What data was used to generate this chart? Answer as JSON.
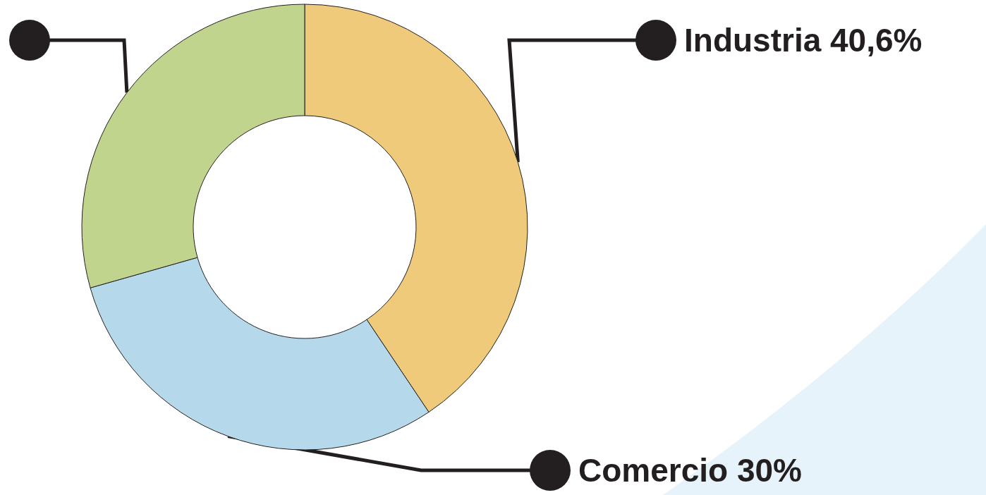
{
  "chart_data": {
    "type": "donut",
    "categories": [
      "Industria",
      "Comercio",
      null
    ],
    "values": [
      40.6,
      30,
      29.4
    ],
    "value_labels": [
      "40,6%",
      "30%",
      null
    ],
    "colors": [
      "#eeca7a",
      "#b5d9eb",
      "#c1d48d"
    ]
  }
}
